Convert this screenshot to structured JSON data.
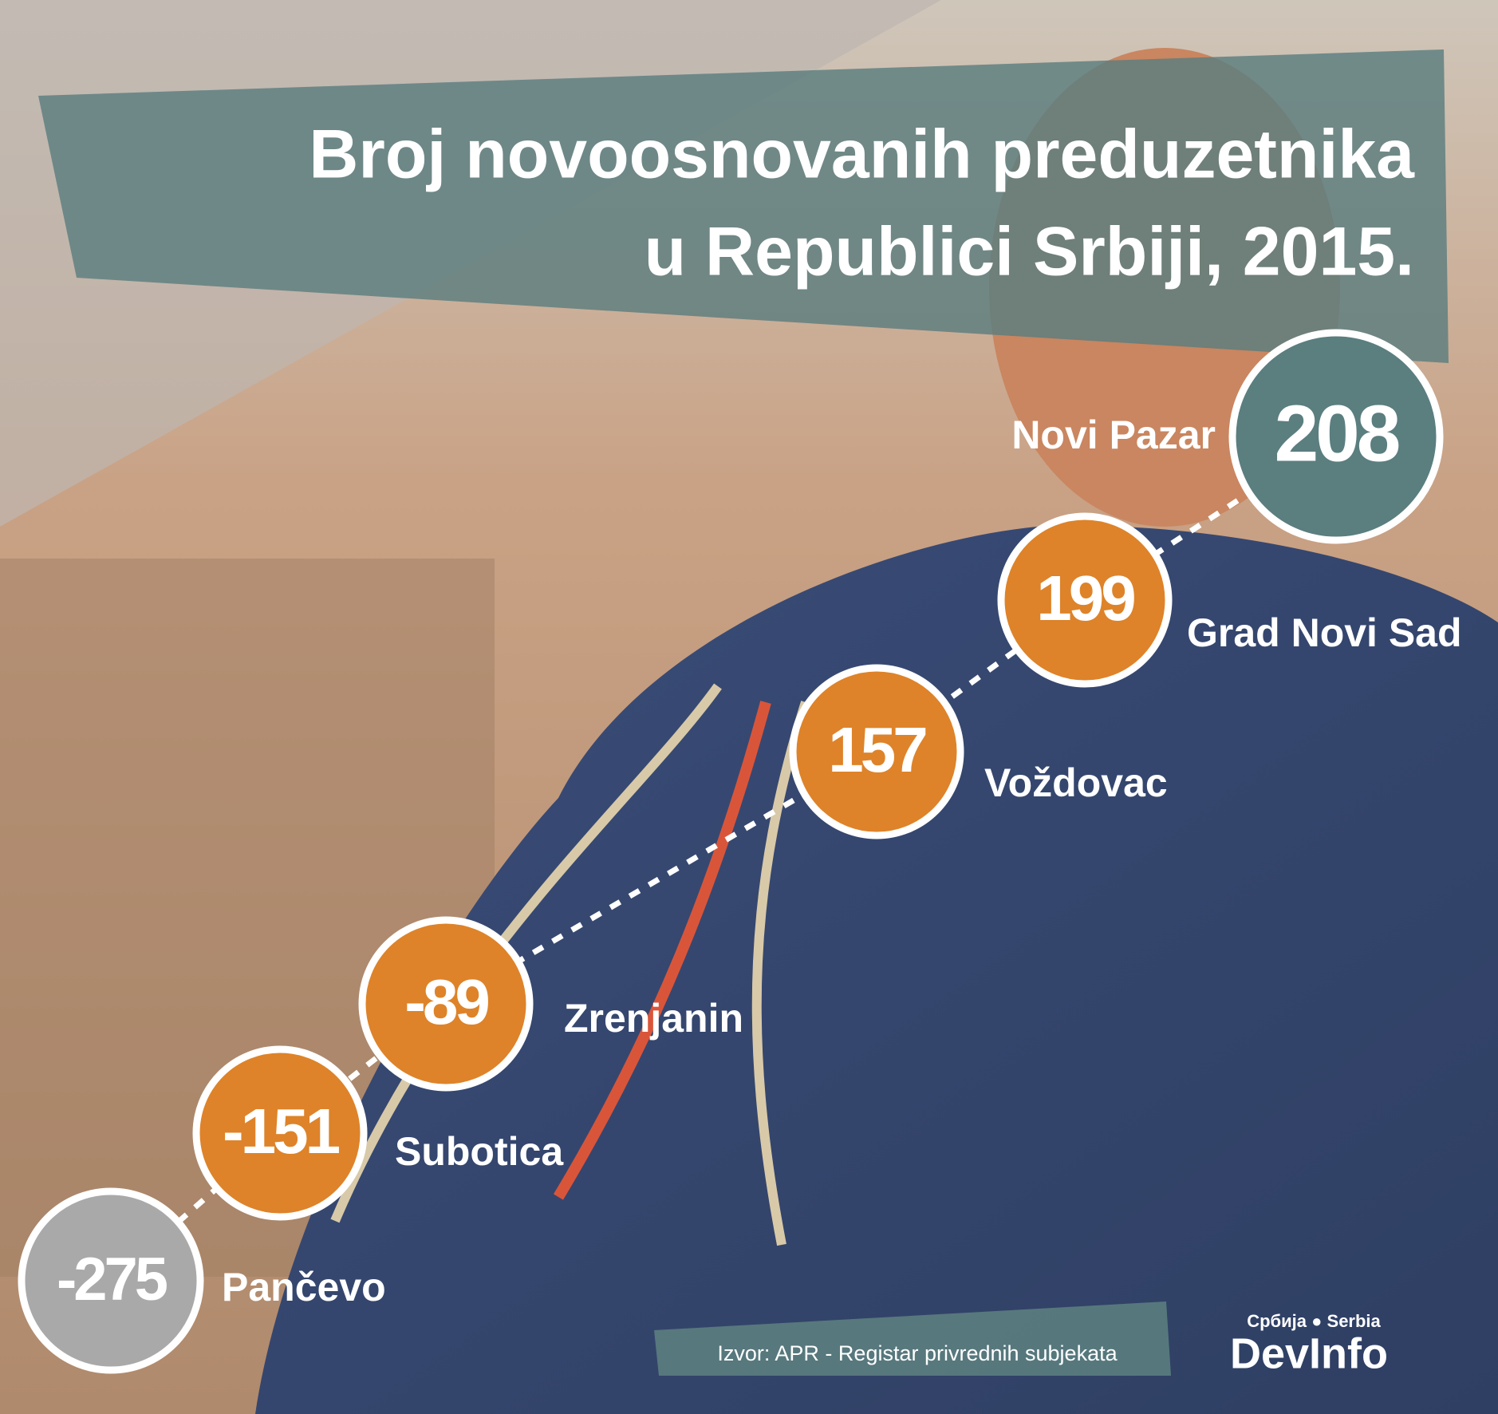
{
  "chart_data": {
    "type": "ranked-circles",
    "title": [
      "Broj novoosnovanih preduzetnika",
      "u Republici Srbiji, 2015."
    ],
    "categories": [
      "Novi Pazar",
      "Grad Novi Sad",
      "Voždovac",
      "Zrenjanin",
      "Subotica",
      "Pančevo"
    ],
    "values": [
      208,
      199,
      157,
      -89,
      -151,
      -275
    ],
    "colors": [
      "#5b7e7f",
      "#de8329",
      "#de8329",
      "#de8329",
      "#de8329",
      "#a9a9a9"
    ],
    "source": "Izvor: APR - Registar privrednih subjekata",
    "logo": {
      "tagline": "Србија ● Serbia",
      "name": "DevInfo"
    }
  }
}
